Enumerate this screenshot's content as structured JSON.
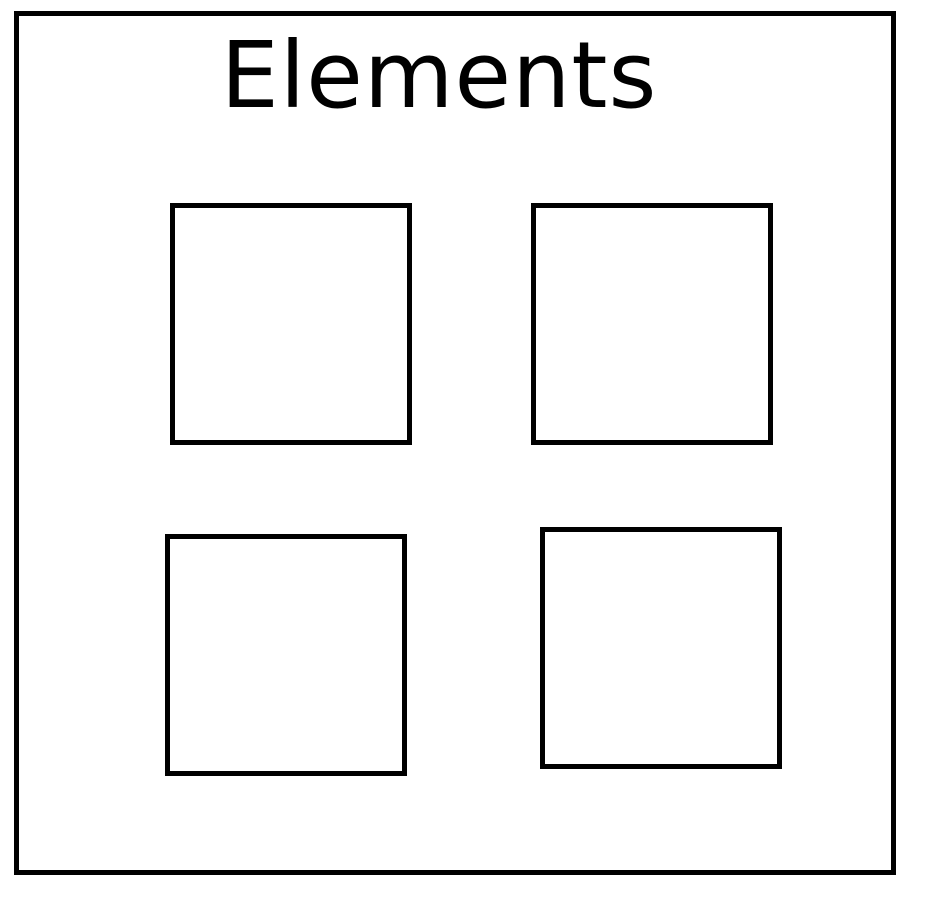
{
  "diagram": {
    "title": "Elements",
    "element_count": 4,
    "colors": {
      "stroke": "#000000",
      "fill": "#ffffff"
    }
  }
}
